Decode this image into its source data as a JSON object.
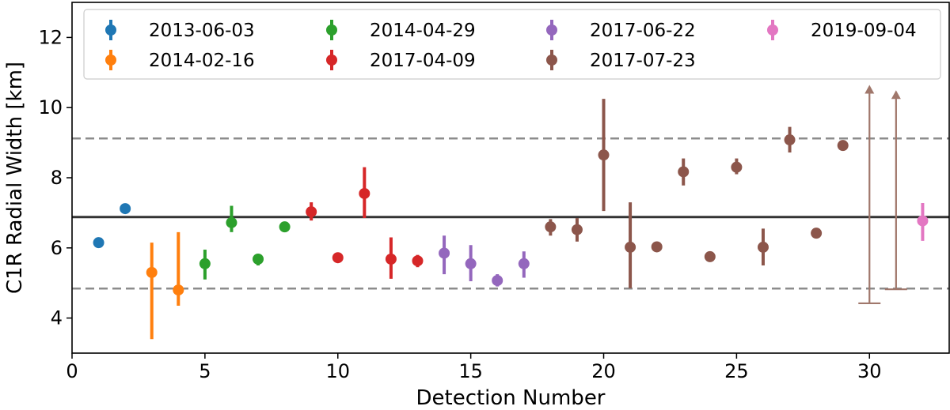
{
  "chart_data": {
    "type": "scatter",
    "xlabel": "Detection Number",
    "ylabel": "C1R Radial Width [km]",
    "xlim": [
      0,
      33
    ],
    "ylim": [
      3,
      13
    ],
    "xticks": [
      0,
      5,
      10,
      15,
      20,
      25,
      30
    ],
    "yticks": [
      4,
      6,
      8,
      10,
      12
    ],
    "grid": false,
    "legend_position": "top",
    "reference_lines": [
      {
        "style": "solid",
        "y": 6.88,
        "color": "#333333"
      },
      {
        "style": "dashed",
        "y": 9.12,
        "color": "#8c8c8c"
      },
      {
        "style": "dashed",
        "y": 4.84,
        "color": "#8c8c8c"
      }
    ],
    "series": [
      {
        "name": "2013-06-03",
        "color": "#1f77b4",
        "points": [
          {
            "x": 1,
            "y": 6.15,
            "lo": 6.15,
            "hi": 6.15
          },
          {
            "x": 2,
            "y": 7.12,
            "lo": 7.12,
            "hi": 7.12
          }
        ]
      },
      {
        "name": "2014-02-16",
        "color": "#ff7f0e",
        "points": [
          {
            "x": 3,
            "y": 5.3,
            "lo": 3.4,
            "hi": 6.15
          },
          {
            "x": 4,
            "y": 4.8,
            "lo": 4.35,
            "hi": 6.45
          }
        ]
      },
      {
        "name": "2014-04-29",
        "color": "#2ca02c",
        "points": [
          {
            "x": 5,
            "y": 5.55,
            "lo": 5.1,
            "hi": 5.95
          },
          {
            "x": 6,
            "y": 6.72,
            "lo": 6.45,
            "hi": 7.2
          },
          {
            "x": 7,
            "y": 5.68,
            "lo": 5.5,
            "hi": 5.82
          },
          {
            "x": 8,
            "y": 6.6,
            "lo": 6.45,
            "hi": 6.72
          }
        ]
      },
      {
        "name": "2017-04-09",
        "color": "#d62728",
        "points": [
          {
            "x": 9,
            "y": 7.03,
            "lo": 6.78,
            "hi": 7.3
          },
          {
            "x": 10,
            "y": 5.72,
            "lo": 5.72,
            "hi": 5.72
          },
          {
            "x": 11,
            "y": 7.55,
            "lo": 6.85,
            "hi": 8.3
          },
          {
            "x": 12,
            "y": 5.68,
            "lo": 5.12,
            "hi": 6.3
          },
          {
            "x": 13,
            "y": 5.63,
            "lo": 5.45,
            "hi": 5.8
          }
        ]
      },
      {
        "name": "2017-06-22",
        "color": "#9467bd",
        "points": [
          {
            "x": 14,
            "y": 5.85,
            "lo": 5.25,
            "hi": 6.35
          },
          {
            "x": 15,
            "y": 5.55,
            "lo": 5.05,
            "hi": 6.08
          },
          {
            "x": 16,
            "y": 5.07,
            "lo": 4.9,
            "hi": 5.25
          },
          {
            "x": 17,
            "y": 5.55,
            "lo": 5.15,
            "hi": 5.9
          }
        ]
      },
      {
        "name": "2017-07-23",
        "color": "#8c564b",
        "points": [
          {
            "x": 18,
            "y": 6.6,
            "lo": 6.35,
            "hi": 6.82
          },
          {
            "x": 19,
            "y": 6.52,
            "lo": 6.18,
            "hi": 6.85
          },
          {
            "x": 20,
            "y": 8.65,
            "lo": 7.05,
            "hi": 10.25
          },
          {
            "x": 21,
            "y": 6.02,
            "lo": 4.85,
            "hi": 7.3
          },
          {
            "x": 22,
            "y": 6.03,
            "lo": 6.03,
            "hi": 6.03
          },
          {
            "x": 23,
            "y": 8.17,
            "lo": 7.78,
            "hi": 8.55
          },
          {
            "x": 24,
            "y": 5.75,
            "lo": 5.75,
            "hi": 5.75
          },
          {
            "x": 25,
            "y": 8.3,
            "lo": 8.1,
            "hi": 8.55
          },
          {
            "x": 26,
            "y": 6.02,
            "lo": 5.5,
            "hi": 6.55
          },
          {
            "x": 27,
            "y": 9.08,
            "lo": 8.72,
            "hi": 9.45
          },
          {
            "x": 28,
            "y": 6.42,
            "lo": 6.42,
            "hi": 6.42
          },
          {
            "x": 29,
            "y": 8.92,
            "lo": 8.92,
            "hi": 8.92
          }
        ]
      },
      {
        "name": "2019-09-04",
        "color": "#e377c2",
        "points": [
          {
            "x": 32,
            "y": 6.77,
            "lo": 6.2,
            "hi": 7.28
          }
        ]
      }
    ],
    "limit_arrows": [
      {
        "x": 30,
        "lower": 4.42,
        "upper": 10.6,
        "color": "#a0776b"
      },
      {
        "x": 31,
        "lower": 4.82,
        "upper": 10.45,
        "color": "#a0776b"
      }
    ]
  }
}
